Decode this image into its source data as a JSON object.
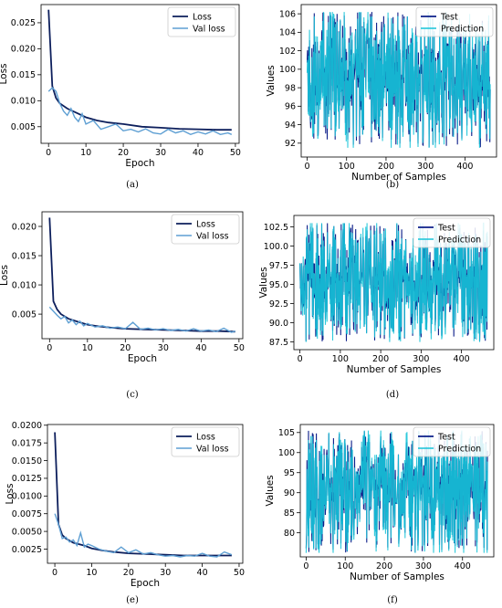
{
  "chart_data": [
    {
      "panel": "(a)",
      "type": "line",
      "xlabel": "Epoch",
      "ylabel": "Loss",
      "xlim": [
        -2,
        51
      ],
      "ylim": [
        0.0018,
        0.0285
      ],
      "xticks": [
        0,
        10,
        20,
        30,
        40,
        50
      ],
      "yticks": [
        0.005,
        0.01,
        0.015,
        0.02,
        0.025
      ],
      "ytick_labels": [
        "0.005",
        "0.010",
        "0.015",
        "0.020",
        "0.025"
      ],
      "legend": "top-right",
      "series": [
        {
          "name": "Loss",
          "color": "#0d1f5c",
          "x": [
            0,
            1,
            2,
            3,
            5,
            8,
            10,
            13,
            16,
            20,
            25,
            30,
            35,
            40,
            45,
            49
          ],
          "y": [
            0.0275,
            0.0128,
            0.0105,
            0.0095,
            0.0085,
            0.0075,
            0.0068,
            0.0062,
            0.0058,
            0.0055,
            0.005,
            0.0048,
            0.0046,
            0.0045,
            0.0044,
            0.0044
          ]
        },
        {
          "name": "Val loss",
          "color": "#5e9fd3",
          "x": [
            0,
            1,
            2,
            3,
            4,
            5,
            6,
            7,
            8,
            9,
            10,
            12,
            14,
            16,
            18,
            20,
            22,
            24,
            26,
            28,
            30,
            32,
            34,
            36,
            38,
            40,
            42,
            44,
            46,
            48,
            49
          ],
          "y": [
            0.0118,
            0.0125,
            0.0118,
            0.0095,
            0.008,
            0.0072,
            0.0085,
            0.0068,
            0.006,
            0.0075,
            0.0055,
            0.0062,
            0.0045,
            0.005,
            0.0055,
            0.0042,
            0.0045,
            0.004,
            0.0046,
            0.0038,
            0.0036,
            0.0045,
            0.0038,
            0.0042,
            0.0035,
            0.004,
            0.0036,
            0.0042,
            0.0035,
            0.0038,
            0.0035
          ]
        }
      ]
    },
    {
      "panel": "(b)",
      "type": "line",
      "xlabel": "Number of Samples",
      "ylabel": "Values",
      "xlim": [
        -15,
        480
      ],
      "ylim": [
        90.5,
        107
      ],
      "xticks": [
        0,
        100,
        200,
        300,
        400
      ],
      "yticks": [
        92,
        94,
        96,
        98,
        100,
        102,
        104,
        106
      ],
      "ytick_labels": [
        "92",
        "94",
        "96",
        "98",
        "100",
        "102",
        "104",
        "106"
      ],
      "legend": "top-right",
      "series_style": {
        "n": 465,
        "seed": 11,
        "min": 91.5,
        "max": 106.2,
        "mid": 99
      },
      "series": [
        {
          "name": "Test",
          "color": "#0d1f8a"
        },
        {
          "name": "Prediction",
          "color": "#17c4d8"
        }
      ]
    },
    {
      "panel": "(c)",
      "type": "line",
      "xlabel": "Epoch",
      "ylabel": "Loss",
      "xlim": [
        -2,
        51
      ],
      "ylim": [
        0.0008,
        0.0225
      ],
      "xticks": [
        0,
        10,
        20,
        30,
        40,
        50
      ],
      "yticks": [
        0.005,
        0.01,
        0.015,
        0.02
      ],
      "ytick_labels": [
        "0.005",
        "0.010",
        "0.015",
        "0.020"
      ],
      "legend": "top-right",
      "series": [
        {
          "name": "Loss",
          "color": "#0d1f5c",
          "x": [
            0,
            1,
            2,
            3,
            5,
            8,
            10,
            13,
            16,
            20,
            25,
            30,
            35,
            40,
            45,
            49
          ],
          "y": [
            0.0215,
            0.0072,
            0.0058,
            0.005,
            0.0042,
            0.0036,
            0.0032,
            0.0029,
            0.0027,
            0.0025,
            0.0024,
            0.0023,
            0.0022,
            0.0021,
            0.0021,
            0.002
          ]
        },
        {
          "name": "Val loss",
          "color": "#5e9fd3",
          "x": [
            0,
            1,
            2,
            3,
            4,
            5,
            6,
            7,
            8,
            9,
            10,
            12,
            14,
            16,
            18,
            20,
            22,
            24,
            26,
            28,
            30,
            32,
            34,
            36,
            38,
            40,
            42,
            44,
            46,
            48,
            49
          ],
          "y": [
            0.0062,
            0.0055,
            0.0048,
            0.0042,
            0.0046,
            0.0035,
            0.004,
            0.0032,
            0.0038,
            0.003,
            0.0034,
            0.0028,
            0.003,
            0.0026,
            0.0028,
            0.0025,
            0.0036,
            0.0024,
            0.0026,
            0.0023,
            0.0025,
            0.0022,
            0.0024,
            0.0021,
            0.0025,
            0.0021,
            0.0023,
            0.002,
            0.0026,
            0.0019,
            0.0021
          ]
        }
      ]
    },
    {
      "panel": "(d)",
      "type": "line",
      "xlabel": "Number of Samples",
      "ylabel": "Values",
      "xlim": [
        -15,
        480
      ],
      "ylim": [
        86.5,
        104
      ],
      "xticks": [
        0,
        100,
        200,
        300,
        400
      ],
      "yticks": [
        87.5,
        90.0,
        92.5,
        95.0,
        97.5,
        100.0,
        102.5
      ],
      "ytick_labels": [
        "87.5",
        "90.0",
        "92.5",
        "95.0",
        "97.5",
        "100.0",
        "102.5"
      ],
      "legend": "top-right",
      "series_style": {
        "n": 465,
        "seed": 23,
        "min": 87.5,
        "max": 103.0,
        "mid": 96
      },
      "series": [
        {
          "name": "Test",
          "color": "#0d1f8a"
        },
        {
          "name": "Prediction",
          "color": "#17c4d8"
        }
      ]
    },
    {
      "panel": "(e)",
      "type": "line",
      "xlabel": "Epoch",
      "ylabel": "Loss",
      "xlim": [
        -2,
        51
      ],
      "ylim": [
        0.0005,
        0.0201
      ],
      "xticks": [
        0,
        10,
        20,
        30,
        40,
        50
      ],
      "yticks": [
        0.0025,
        0.005,
        0.0075,
        0.01,
        0.0125,
        0.015,
        0.0175,
        0.02
      ],
      "ytick_labels": [
        "0.0025",
        "0.0050",
        "0.0075",
        "0.0100",
        "0.0125",
        "0.0150",
        "0.0175",
        "0.0200"
      ],
      "legend": "top-right",
      "series": [
        {
          "name": "Loss",
          "color": "#0d1f5c",
          "x": [
            0,
            1,
            2,
            3,
            5,
            8,
            10,
            13,
            16,
            20,
            25,
            30,
            35,
            40,
            45,
            48
          ],
          "y": [
            0.019,
            0.006,
            0.0045,
            0.004,
            0.0034,
            0.003,
            0.0026,
            0.0023,
            0.0021,
            0.0019,
            0.0018,
            0.0017,
            0.0016,
            0.0016,
            0.0016,
            0.0016
          ]
        },
        {
          "name": "Val loss",
          "color": "#5e9fd3",
          "x": [
            0,
            1,
            2,
            3,
            4,
            5,
            6,
            7,
            8,
            9,
            10,
            12,
            14,
            16,
            18,
            20,
            22,
            24,
            26,
            28,
            30,
            32,
            34,
            36,
            38,
            40,
            42,
            44,
            46,
            48
          ],
          "y": [
            0.0075,
            0.006,
            0.004,
            0.0042,
            0.0035,
            0.0038,
            0.003,
            0.0048,
            0.0028,
            0.0032,
            0.003,
            0.0025,
            0.0022,
            0.002,
            0.0028,
            0.002,
            0.0024,
            0.0018,
            0.002,
            0.0017,
            0.0015,
            0.0016,
            0.0014,
            0.0016,
            0.0015,
            0.0019,
            0.0015,
            0.0014,
            0.0021,
            0.0017
          ]
        }
      ]
    },
    {
      "panel": "(f)",
      "type": "line",
      "xlabel": "Number of Samples",
      "ylabel": "Values",
      "xlim": [
        -15,
        480
      ],
      "ylim": [
        74,
        107
      ],
      "xticks": [
        0,
        100,
        200,
        300,
        400
      ],
      "yticks": [
        80,
        85,
        90,
        95,
        100,
        105
      ],
      "ytick_labels": [
        "80",
        "85",
        "90",
        "95",
        "100",
        "105"
      ],
      "legend": "top-right",
      "series_style": {
        "n": 465,
        "seed": 37,
        "min": 75,
        "max": 105.5,
        "mid": 92
      },
      "series": [
        {
          "name": "Test",
          "color": "#0d1f8a"
        },
        {
          "name": "Prediction",
          "color": "#17c4d8"
        }
      ]
    }
  ]
}
